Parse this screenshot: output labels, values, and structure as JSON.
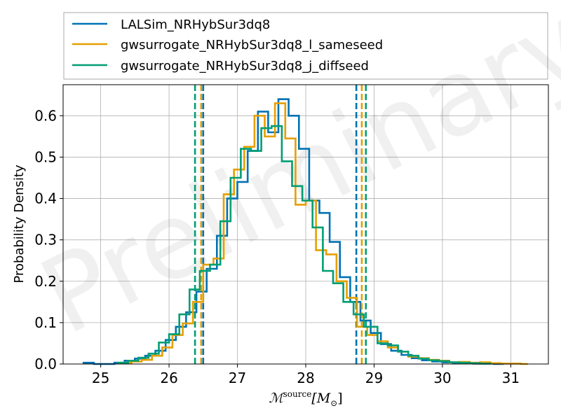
{
  "chart_data": {
    "type": "line",
    "xlabel_main": "ℳ",
    "xlabel_super": "source",
    "xlabel_unit_open": "[M",
    "xlabel_unit_sub": "⊙",
    "xlabel_unit_close": "]",
    "ylabel": "Probability Density",
    "xlim": [
      24.45,
      31.55
    ],
    "ylim": [
      0.0,
      0.675
    ],
    "xticks": [
      25,
      26,
      27,
      28,
      29,
      30,
      31
    ],
    "yticks": [
      0.0,
      0.1,
      0.2,
      0.3,
      0.4,
      0.5,
      0.6
    ],
    "ytick_labels": [
      "0.0",
      "0.1",
      "0.2",
      "0.3",
      "0.4",
      "0.5",
      "0.6"
    ],
    "grid": true,
    "legend_position": "above plot",
    "watermark": "Preliminary",
    "series": [
      {
        "name": "LALSim_NRHybSur3dq8",
        "color": "#0072B2",
        "bin_edges": [
          24.75,
          24.9,
          25.05,
          25.2,
          25.35,
          25.5,
          25.65,
          25.8,
          25.95,
          26.1,
          26.25,
          26.4,
          26.55,
          26.7,
          26.85,
          27.0,
          27.15,
          27.3,
          27.45,
          27.6,
          27.75,
          27.9,
          28.05,
          28.2,
          28.35,
          28.5,
          28.65,
          28.8,
          28.95,
          29.1,
          29.25,
          29.4,
          29.55,
          29.7,
          29.85,
          30.0,
          30.15,
          30.3,
          30.45,
          30.6,
          30.75,
          30.9
        ],
        "densities": [
          0.003,
          0.0,
          0.0,
          0.003,
          0.008,
          0.013,
          0.02,
          0.032,
          0.058,
          0.09,
          0.125,
          0.175,
          0.23,
          0.31,
          0.4,
          0.44,
          0.515,
          0.61,
          0.56,
          0.64,
          0.6,
          0.52,
          0.395,
          0.365,
          0.295,
          0.21,
          0.15,
          0.105,
          0.075,
          0.048,
          0.032,
          0.022,
          0.014,
          0.009,
          0.006,
          0.004,
          0.003,
          0.002,
          0.001,
          0.001,
          0.0
        ],
        "credible_interval": [
          28.74,
          26.5
        ]
      },
      {
        "name": "gwsurrogate_NRHybSur3dq8_l_sameseed",
        "color": "#E69F00",
        "bin_edges": [
          25.3,
          25.45,
          25.6,
          25.75,
          25.9,
          26.05,
          26.2,
          26.35,
          26.5,
          26.65,
          26.8,
          26.95,
          27.1,
          27.25,
          27.4,
          27.55,
          27.7,
          27.85,
          28.0,
          28.15,
          28.3,
          28.45,
          28.6,
          28.75,
          28.9,
          29.05,
          29.2,
          29.35,
          29.5,
          29.65,
          29.8,
          29.95,
          30.1,
          30.25,
          30.4,
          30.55,
          30.7,
          30.85,
          31.0,
          31.15,
          31.25
        ],
        "densities": [
          0.003,
          0.006,
          0.01,
          0.02,
          0.04,
          0.07,
          0.098,
          0.15,
          0.24,
          0.255,
          0.41,
          0.47,
          0.525,
          0.6,
          0.55,
          0.63,
          0.545,
          0.385,
          0.395,
          0.275,
          0.265,
          0.2,
          0.16,
          0.09,
          0.07,
          0.055,
          0.04,
          0.03,
          0.018,
          0.014,
          0.01,
          0.008,
          0.004,
          0.005,
          0.003,
          0.004,
          0.002,
          0.001,
          0.001,
          0.0
        ],
        "credible_interval": [
          28.82,
          26.47
        ]
      },
      {
        "name": "gwsurrogate_NRHybSur3dq8_j_diffseed",
        "color": "#009E73",
        "bin_edges": [
          25.25,
          25.4,
          25.55,
          25.7,
          25.85,
          26.0,
          26.15,
          26.3,
          26.45,
          26.6,
          26.75,
          26.9,
          27.05,
          27.2,
          27.35,
          27.5,
          27.65,
          27.8,
          27.95,
          28.1,
          28.25,
          28.4,
          28.55,
          28.7,
          28.85,
          29.05,
          29.2,
          29.35,
          29.5,
          29.65,
          29.8,
          29.95,
          30.1,
          30.25,
          30.4,
          30.55,
          30.7
        ],
        "densities": [
          0.003,
          0.008,
          0.015,
          0.025,
          0.052,
          0.072,
          0.12,
          0.18,
          0.225,
          0.24,
          0.345,
          0.45,
          0.52,
          0.515,
          0.57,
          0.575,
          0.49,
          0.43,
          0.395,
          0.33,
          0.225,
          0.195,
          0.15,
          0.12,
          0.09,
          0.05,
          0.045,
          0.03,
          0.02,
          0.013,
          0.009,
          0.007,
          0.004,
          0.003,
          0.002,
          0.001
        ],
        "credible_interval": [
          28.88,
          26.38
        ]
      }
    ]
  }
}
